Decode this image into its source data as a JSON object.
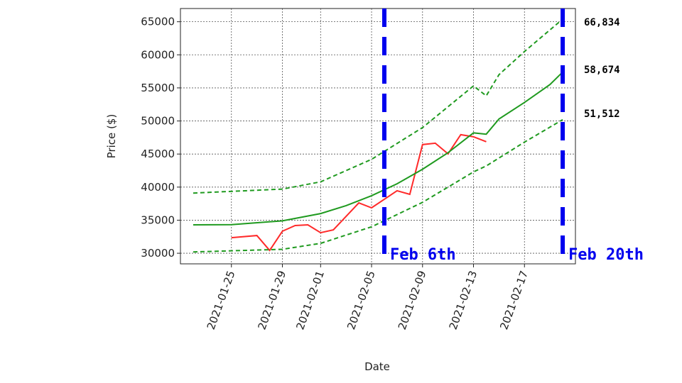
{
  "chart_data": {
    "type": "line",
    "x_label": "Date",
    "y_label": "Price ($)",
    "xlim": [
      "2021-01-21",
      "2021-02-21"
    ],
    "xticks": [
      "2021-01-25",
      "2021-01-29",
      "2021-02-01",
      "2021-02-05",
      "2021-02-09",
      "2021-02-13",
      "2021-02-17"
    ],
    "ylim": [
      28400,
      67000
    ],
    "yticks": [
      30000,
      35000,
      40000,
      45000,
      50000,
      55000,
      60000,
      65000
    ],
    "grid": true,
    "series": [
      {
        "color": "#ff2a2a",
        "dash": false,
        "x": [
          "2021-01-25",
          "2021-01-27",
          "2021-01-28",
          "2021-01-29",
          "2021-01-30",
          "2021-01-31",
          "2021-02-01",
          "2021-02-02",
          "2021-02-04",
          "2021-02-05",
          "2021-02-07",
          "2021-02-08",
          "2021-02-09",
          "2021-02-10",
          "2021-02-11",
          "2021-02-12",
          "2021-02-13",
          "2021-02-14"
        ],
        "values": [
          32360,
          32680,
          30430,
          33330,
          34190,
          34300,
          33110,
          33540,
          37620,
          36870,
          39450,
          38910,
          46430,
          46640,
          45030,
          47930,
          47610,
          46860
        ]
      },
      {
        "color": "#1f9a1f",
        "dash": false,
        "x": [
          "2021-01-22",
          "2021-01-25",
          "2021-01-29",
          "2021-02-01",
          "2021-02-03",
          "2021-02-05",
          "2021-02-07",
          "2021-02-09",
          "2021-02-11",
          "2021-02-13",
          "2021-02-14",
          "2021-02-15",
          "2021-02-17",
          "2021-02-19",
          "2021-02-20"
        ],
        "values": [
          34300,
          34330,
          34900,
          36000,
          37200,
          38700,
          40500,
          42700,
          45200,
          48200,
          48000,
          50300,
          52800,
          55500,
          57400
        ]
      },
      {
        "color": "#1f9a1f",
        "dash": true,
        "x": [
          "2021-01-22",
          "2021-01-29",
          "2021-02-01",
          "2021-02-05",
          "2021-02-09",
          "2021-02-13",
          "2021-02-14",
          "2021-02-15",
          "2021-02-17",
          "2021-02-20"
        ],
        "values": [
          39100,
          39700,
          40800,
          44200,
          49000,
          55300,
          53800,
          57000,
          60500,
          65400
        ]
      },
      {
        "color": "#1f9a1f",
        "dash": true,
        "x": [
          "2021-01-22",
          "2021-01-29",
          "2021-02-01",
          "2021-02-05",
          "2021-02-09",
          "2021-02-13",
          "2021-02-14",
          "2021-02-17",
          "2021-02-20"
        ],
        "values": [
          30200,
          30600,
          31500,
          34000,
          37700,
          42300,
          43200,
          46800,
          50200
        ]
      }
    ],
    "vlines": [
      {
        "x": "2021-02-06",
        "label": "Feb 6th",
        "color": "#0000ee"
      },
      {
        "x": "2021-02-20",
        "label": "Feb 20th",
        "color": "#0000ee"
      }
    ],
    "side_labels": [
      "66,834",
      "58,674",
      "51,512"
    ]
  }
}
